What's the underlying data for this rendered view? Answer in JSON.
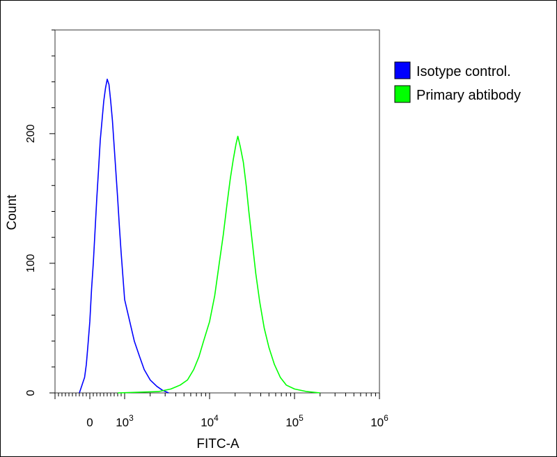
{
  "chart_data": {
    "type": "line",
    "title": "",
    "xlabel": "FITC-A",
    "ylabel": "Count",
    "xscale": "biexponential",
    "xlim": [
      -300,
      1000000
    ],
    "ylim": [
      0,
      280
    ],
    "grid": false,
    "legend_position": "top-right",
    "x_tick_labels": [
      {
        "value": 0,
        "label": "0"
      },
      {
        "value": 1000,
        "base": "10",
        "exp": "3"
      },
      {
        "value": 10000,
        "base": "10",
        "exp": "4"
      },
      {
        "value": 100000,
        "base": "10",
        "exp": "5"
      },
      {
        "value": 1000000,
        "base": "10",
        "exp": "6"
      }
    ],
    "y_ticks": [
      0,
      100,
      200
    ],
    "y_tick_labels": [
      "0",
      "100",
      "200"
    ],
    "series": [
      {
        "name": "Isotype control.",
        "color": "#0000ff",
        "points": [
          [
            -300,
            0
          ],
          [
            -250,
            4
          ],
          [
            -200,
            8
          ],
          [
            -150,
            12
          ],
          [
            -100,
            22
          ],
          [
            -50,
            38
          ],
          [
            0,
            55
          ],
          [
            50,
            80
          ],
          [
            100,
            100
          ],
          [
            150,
            125
          ],
          [
            200,
            150
          ],
          [
            250,
            172
          ],
          [
            300,
            195
          ],
          [
            350,
            210
          ],
          [
            400,
            225
          ],
          [
            450,
            235
          ],
          [
            500,
            242
          ],
          [
            550,
            238
          ],
          [
            600,
            225
          ],
          [
            650,
            210
          ],
          [
            700,
            190
          ],
          [
            750,
            170
          ],
          [
            800,
            150
          ],
          [
            850,
            128
          ],
          [
            900,
            108
          ],
          [
            950,
            90
          ],
          [
            1000,
            72
          ],
          [
            1150,
            55
          ],
          [
            1300,
            40
          ],
          [
            1500,
            28
          ],
          [
            1700,
            18
          ],
          [
            2000,
            10
          ],
          [
            2400,
            5
          ],
          [
            2800,
            2
          ],
          [
            3300,
            0
          ]
        ]
      },
      {
        "name": "Primary abtibody",
        "color": "#00ff00",
        "points": [
          [
            800,
            0
          ],
          [
            2500,
            1
          ],
          [
            3500,
            3
          ],
          [
            4500,
            6
          ],
          [
            5500,
            10
          ],
          [
            6500,
            18
          ],
          [
            7500,
            28
          ],
          [
            8500,
            40
          ],
          [
            10000,
            55
          ],
          [
            11500,
            75
          ],
          [
            13000,
            100
          ],
          [
            14500,
            122
          ],
          [
            16000,
            145
          ],
          [
            17500,
            165
          ],
          [
            19000,
            180
          ],
          [
            20500,
            192
          ],
          [
            21500,
            198
          ],
          [
            23000,
            190
          ],
          [
            25000,
            178
          ],
          [
            27000,
            160
          ],
          [
            29000,
            140
          ],
          [
            32000,
            115
          ],
          [
            35000,
            92
          ],
          [
            39000,
            70
          ],
          [
            44000,
            50
          ],
          [
            50000,
            35
          ],
          [
            58000,
            22
          ],
          [
            68000,
            12
          ],
          [
            80000,
            6
          ],
          [
            100000,
            3
          ],
          [
            140000,
            1
          ],
          [
            200000,
            0
          ]
        ]
      }
    ]
  }
}
